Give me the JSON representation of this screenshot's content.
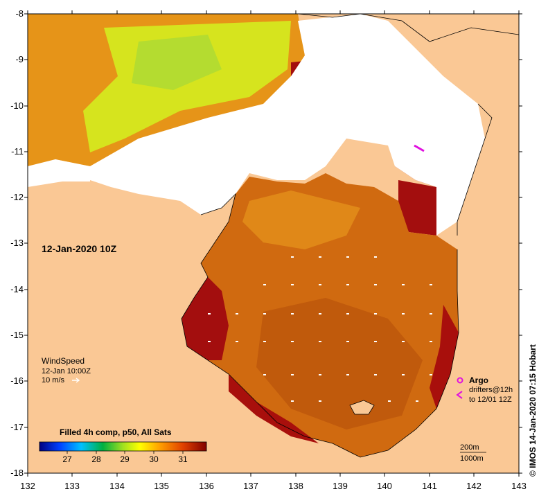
{
  "map": {
    "date_label": "12-Jan-2020 10Z",
    "y_ticks": [
      "-8",
      "-9",
      "-10",
      "-11",
      "-12",
      "-13",
      "-14",
      "-15",
      "-16",
      "-17",
      "-18"
    ],
    "x_ticks": [
      "132",
      "133",
      "134",
      "135",
      "136",
      "137",
      "138",
      "139",
      "140",
      "141",
      "142",
      "143"
    ],
    "credit": "© IMOS 14-Jan-2020 07:15 Hobart"
  },
  "wind": {
    "title": "WindSpeed",
    "time": "12-Jan 10:00Z",
    "speed": "10 m/s"
  },
  "colorbar": {
    "title": "Filled 4h comp, p50, All Sats",
    "ticks": [
      "27",
      "28",
      "29",
      "30",
      "31"
    ]
  },
  "legend": {
    "argo": "Argo",
    "drifters_line1": "drifters@12h",
    "drifters_line2": "to 12/01 12Z"
  },
  "scale": {
    "depth_200": "200m",
    "depth_1000": "1000m"
  },
  "colors": {
    "land": "#fac895",
    "cloud": "#ffffff",
    "sst_hot": "#a30e0e",
    "sst_warm": "#c84a0c",
    "sst_mid": "#d8700e",
    "sst_cool": "#e6a21c",
    "sst_yellow": "#d6e41e",
    "argo": "#e010e0"
  }
}
